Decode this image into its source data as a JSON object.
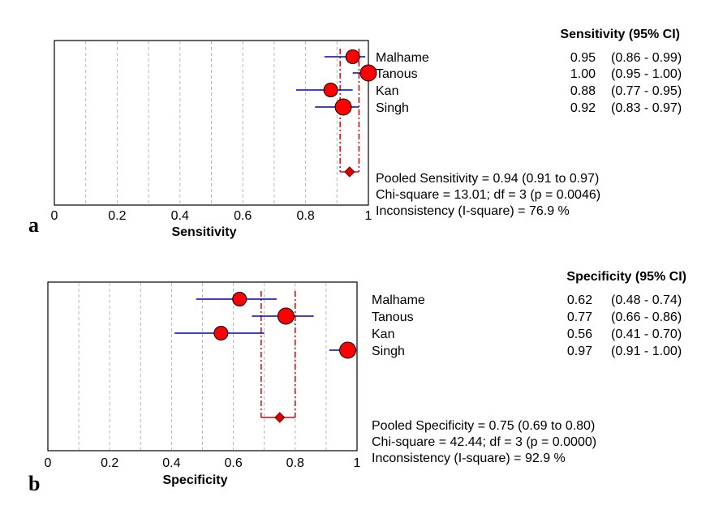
{
  "chart_data": [
    {
      "type": "forest",
      "panel_label": "a",
      "xlabel": "Sensitivity",
      "xlim": [
        0,
        1
      ],
      "xticks": [
        "0",
        "0.2",
        "0.4",
        "0.6",
        "0.8",
        "1"
      ],
      "header": "Sensitivity (95% CI)",
      "studies": [
        {
          "name": "Malhame",
          "estimate": 0.95,
          "lower": 0.86,
          "upper": 0.99,
          "est_text": "0.95",
          "ci_text": "(0.86 - 0.99)"
        },
        {
          "name": "Tanous",
          "estimate": 1.0,
          "lower": 0.95,
          "upper": 1.0,
          "est_text": "1.00",
          "ci_text": "(0.95 - 1.00)"
        },
        {
          "name": "Kan",
          "estimate": 0.88,
          "lower": 0.77,
          "upper": 0.95,
          "est_text": "0.88",
          "ci_text": "(0.77 - 0.95)"
        },
        {
          "name": "Singh",
          "estimate": 0.92,
          "lower": 0.83,
          "upper": 0.97,
          "est_text": "0.92",
          "ci_text": "(0.83 - 0.97)"
        }
      ],
      "pooled": {
        "estimate": 0.94,
        "lower": 0.91,
        "upper": 0.97
      },
      "stats": [
        "Pooled Sensitivity = 0.94 (0.91 to 0.97)",
        "Chi-square = 13.01; df =  3 (p = 0.0046)",
        "Inconsistency (I-square) = 76.9 %"
      ],
      "grid": "vertical dashed",
      "colors": {
        "marker": "#ff0000",
        "ci_line": "#0000cc",
        "pooled": "#dd0000"
      }
    },
    {
      "type": "forest",
      "panel_label": "b",
      "xlabel": "Specificity",
      "xlim": [
        0,
        1
      ],
      "xticks": [
        "0",
        "0.2",
        "0.4",
        "0.6",
        "0.8",
        "1"
      ],
      "header": "Specificity (95% CI)",
      "studies": [
        {
          "name": "Malhame",
          "estimate": 0.62,
          "lower": 0.48,
          "upper": 0.74,
          "est_text": "0.62",
          "ci_text": "(0.48 - 0.74)"
        },
        {
          "name": "Tanous",
          "estimate": 0.77,
          "lower": 0.66,
          "upper": 0.86,
          "est_text": "0.77",
          "ci_text": "(0.66 - 0.86)"
        },
        {
          "name": "Kan",
          "estimate": 0.56,
          "lower": 0.41,
          "upper": 0.7,
          "est_text": "0.56",
          "ci_text": "(0.41 - 0.70)"
        },
        {
          "name": "Singh",
          "estimate": 0.97,
          "lower": 0.91,
          "upper": 1.0,
          "est_text": "0.97",
          "ci_text": "(0.91 - 1.00)"
        }
      ],
      "pooled": {
        "estimate": 0.75,
        "lower": 0.69,
        "upper": 0.8
      },
      "stats": [
        "Pooled Specificity = 0.75 (0.69 to 0.80)",
        "Chi-square = 42.44; df =  3 (p = 0.0000)",
        "Inconsistency (I-square) = 92.9 %"
      ],
      "grid": "vertical dashed",
      "colors": {
        "marker": "#ff0000",
        "ci_line": "#0000cc",
        "pooled": "#dd0000"
      }
    }
  ]
}
